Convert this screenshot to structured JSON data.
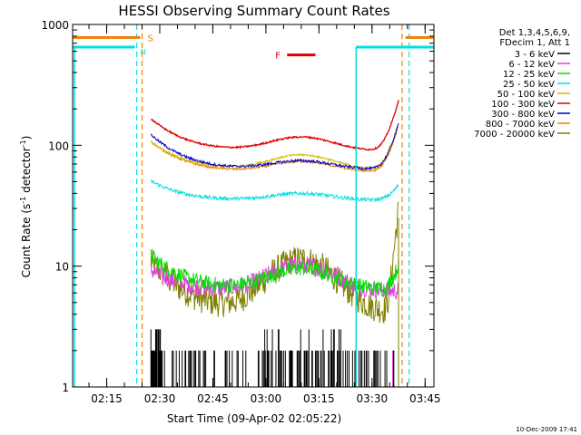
{
  "chart_data": {
    "type": "line",
    "title": "HESSI Observing Summary Count Rates",
    "xlabel": "Start Time (09-Apr-02 02:05:22)",
    "ylabel_main": "Count Rate (s",
    "ylabel_sup1": "-1",
    "ylabel_mid": " detector",
    "ylabel_sup2": "-1",
    "ylabel_end": ")",
    "y_scale": "log",
    "ylim": [
      1,
      1000
    ],
    "xlim": [
      "02:05:22",
      "03:47:30"
    ],
    "x_ticks": [
      "02:15",
      "02:30",
      "02:45",
      "03:00",
      "03:15",
      "03:30",
      "03:45"
    ],
    "y_ticks": [
      "1",
      "10",
      "100",
      "1000"
    ],
    "legend_header": [
      "Det 1,3,4,5,6,9,",
      "FDecim 1, Att 1"
    ],
    "series": [
      {
        "name": "3 - 6 keV",
        "color": "#000000"
      },
      {
        "name": "6 - 12 keV",
        "color": "#e040e0"
      },
      {
        "name": "12 - 25 keV",
        "color": "#00e000"
      },
      {
        "name": "25 - 50 keV",
        "color": "#00e0e0"
      },
      {
        "name": "50 - 100 keV",
        "color": "#d0c000"
      },
      {
        "name": "100 - 300 keV",
        "color": "#e00000"
      },
      {
        "name": "300 - 800 keV",
        "color": "#0000d0"
      },
      {
        "name": "800 - 7000 keV",
        "color": "#f08000"
      },
      {
        "name": "7000 - 20000 keV",
        "color": "#808000"
      }
    ],
    "flags": {
      "S": {
        "label": "S",
        "color": "#f08000"
      },
      "N": {
        "label": "N",
        "color": "#00e0e0"
      },
      "F": {
        "label": "F",
        "color": "#e00000"
      }
    },
    "timestamp": "10-Dec-2009 17:41"
  }
}
